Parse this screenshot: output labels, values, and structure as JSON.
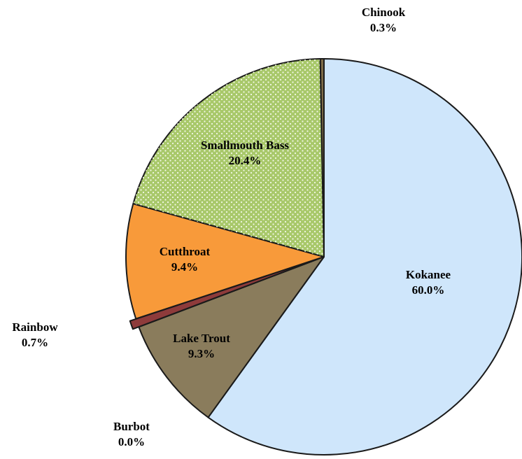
{
  "chart_data": {
    "type": "pie",
    "categories": [
      "Kokanee",
      "Burbot",
      "Lake Trout",
      "Rainbow",
      "Cutthroat",
      "Smallmouth Bass",
      "Chinook"
    ],
    "values": [
      60.0,
      0.0,
      9.3,
      0.7,
      9.4,
      20.4,
      0.3
    ],
    "value_labels": [
      "60.0%",
      "0.0%",
      "9.3%",
      "0.7%",
      "9.4%",
      "20.4%",
      "0.3%"
    ],
    "colors": [
      "#cfe6fb",
      "#9a8f6a",
      "#8a7c5c",
      "#8e3b3b",
      "#f89a3a",
      "#a8c86a",
      "#7d6b48"
    ],
    "exploded": [
      "Rainbow"
    ]
  }
}
